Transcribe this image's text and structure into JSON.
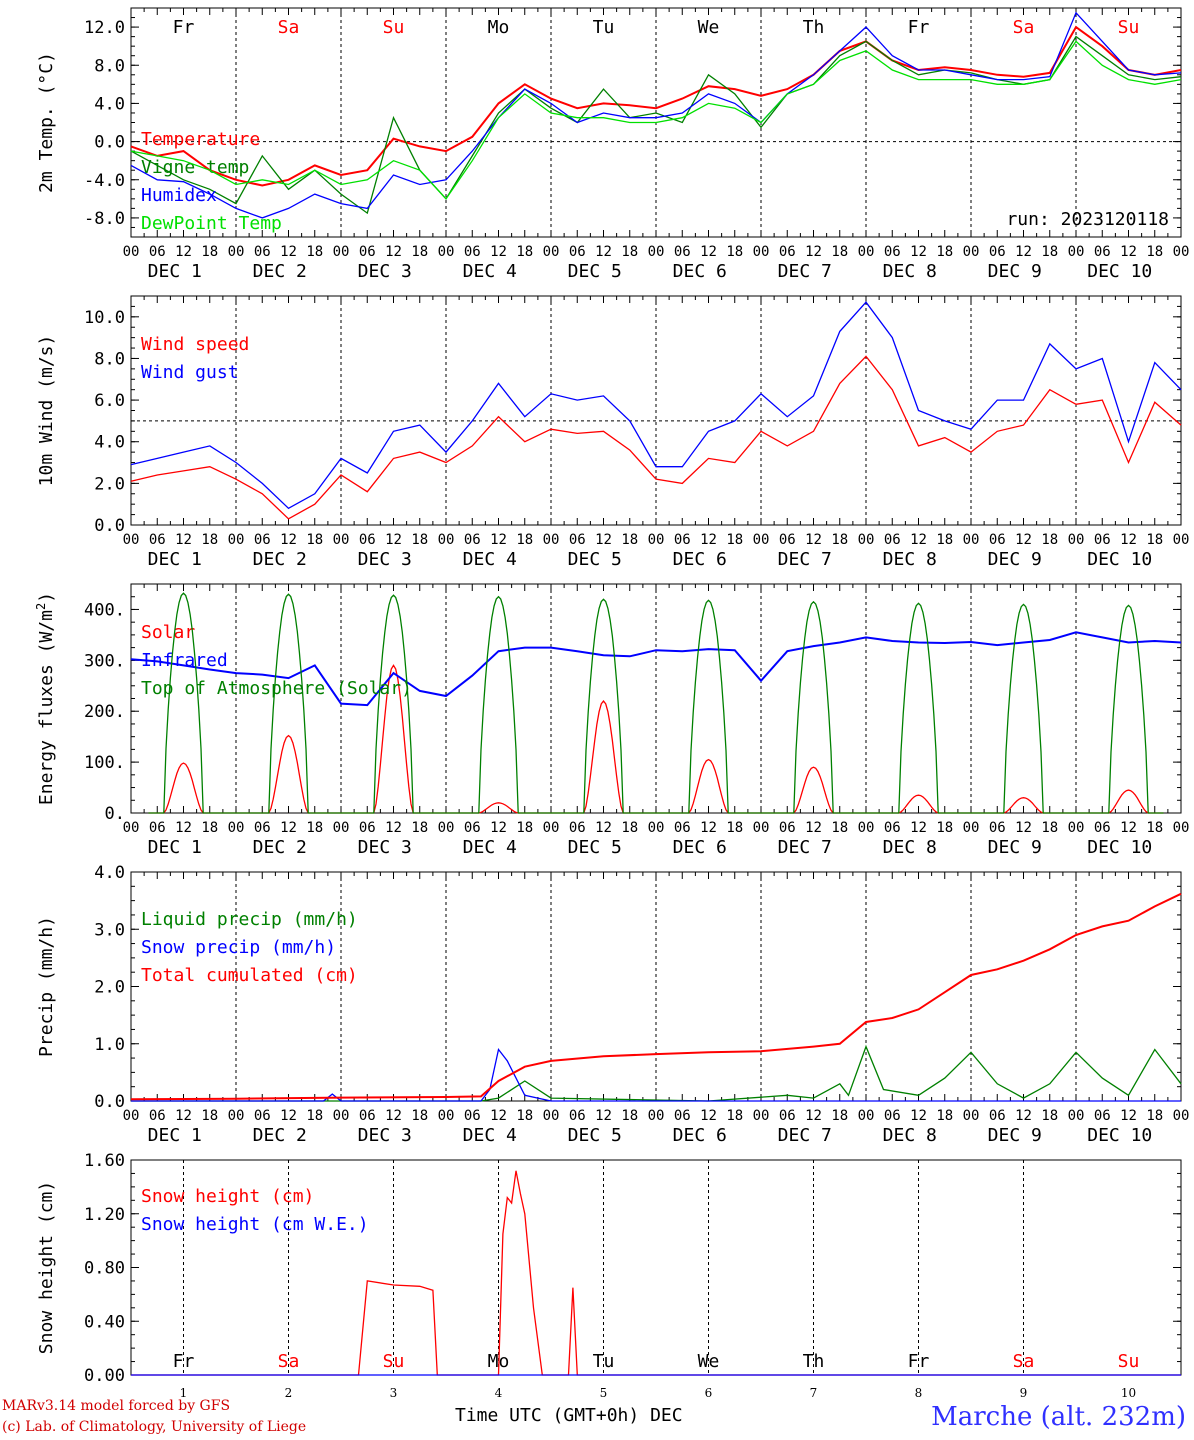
{
  "days": [
    {
      "abbr": "Fr",
      "weekend": false,
      "date": "DEC  1",
      "num": "1"
    },
    {
      "abbr": "Sa",
      "weekend": true,
      "date": "DEC  2",
      "num": "2"
    },
    {
      "abbr": "Su",
      "weekend": true,
      "date": "DEC  3",
      "num": "3"
    },
    {
      "abbr": "Mo",
      "weekend": false,
      "date": "DEC  4",
      "num": "4"
    },
    {
      "abbr": "Tu",
      "weekend": false,
      "date": "DEC  5",
      "num": "5"
    },
    {
      "abbr": "We",
      "weekend": false,
      "date": "DEC  6",
      "num": "6"
    },
    {
      "abbr": "Th",
      "weekend": false,
      "date": "DEC  7",
      "num": "7"
    },
    {
      "abbr": "Fr",
      "weekend": false,
      "date": "DEC  8",
      "num": "8"
    },
    {
      "abbr": "Sa",
      "weekend": true,
      "date": "DEC  9",
      "num": "9"
    },
    {
      "abbr": "Su",
      "weekend": true,
      "date": "DEC 10",
      "num": "10"
    }
  ],
  "hour_labels": [
    "00",
    "06",
    "12",
    "18"
  ],
  "colors": {
    "red": "#ff0000",
    "darkred": "#e00000",
    "blue": "#0000ff",
    "green": "#008000",
    "lightgreen": "#00e000",
    "weekend": "#ff0000"
  },
  "footer": {
    "credit_line1": "MARv3.14 model forced by GFS",
    "credit_line2": "(c) Lab. of Climatology, University of Liege",
    "x_title": "Time UTC (GMT+0h) DEC",
    "station": "Marche (alt. 232m)"
  },
  "chart_data": [
    {
      "type": "line",
      "ylabel": "2m Temp. (°C)",
      "ylim": [
        -10,
        14
      ],
      "yticks": [
        -8,
        -4,
        0,
        4,
        8,
        12
      ],
      "ytick_labels": [
        "-8.0",
        "-4.0",
        "0.0",
        "4.0",
        "8.0",
        "12.0"
      ],
      "ref_line": 0,
      "annotation": "run: 2023120118",
      "x": [
        0,
        6,
        12,
        18,
        24,
        30,
        36,
        42,
        48,
        54,
        60,
        66,
        72,
        78,
        84,
        90,
        96,
        102,
        108,
        114,
        120,
        126,
        132,
        138,
        144,
        150,
        156,
        162,
        168,
        174,
        180,
        186,
        192,
        198,
        204,
        210,
        216,
        222,
        228,
        234,
        240
      ],
      "series": [
        {
          "name": "Temperature",
          "color": "red",
          "values": [
            -0.5,
            -1.5,
            -1.0,
            -3.0,
            -4.0,
            -4.6,
            -4.0,
            -2.5,
            -3.5,
            -3.0,
            0.3,
            -0.5,
            -1.0,
            0.5,
            4.0,
            6.0,
            4.5,
            3.5,
            4.0,
            3.8,
            3.5,
            4.5,
            5.8,
            5.5,
            4.8,
            5.5,
            7.0,
            9.5,
            10.5,
            8.5,
            7.5,
            7.8,
            7.5,
            7.0,
            6.8,
            7.2,
            12.0,
            10.0,
            7.5,
            7.0,
            7.5
          ]
        },
        {
          "name": "Vigne temp",
          "color": "green",
          "values": [
            -1.0,
            -2.5,
            -4.0,
            -5.0,
            -6.5,
            -1.5,
            -5.0,
            -3.0,
            -5.5,
            -7.5,
            2.5,
            -3.0,
            -6.0,
            -1.5,
            3.0,
            5.5,
            3.5,
            2.0,
            5.5,
            2.5,
            3.0,
            2.0,
            7.0,
            5.0,
            1.5,
            5.0,
            6.0,
            9.0,
            10.5,
            8.5,
            7.0,
            7.5,
            7.2,
            6.5,
            6.0,
            6.5,
            11.0,
            9.0,
            7.0,
            6.5,
            6.8
          ]
        },
        {
          "name": "Humidex",
          "color": "blue",
          "values": [
            -2.5,
            -4.0,
            -4.2,
            -5.5,
            -7.0,
            -8.0,
            -7.0,
            -5.5,
            -6.5,
            -7.0,
            -3.5,
            -4.5,
            -4.0,
            -1.0,
            2.5,
            5.5,
            4.0,
            2.0,
            3.0,
            2.5,
            2.5,
            3.0,
            5.0,
            4.0,
            2.0,
            5.0,
            7.0,
            9.5,
            12.0,
            9.0,
            7.5,
            7.5,
            7.0,
            6.5,
            6.5,
            6.8,
            13.5,
            10.5,
            7.5,
            7.0,
            7.2
          ]
        },
        {
          "name": "DewPoint Temp",
          "color": "lightgreen",
          "values": [
            -1.0,
            -1.5,
            -2.0,
            -3.0,
            -4.5,
            -4.0,
            -4.5,
            -3.0,
            -4.5,
            -4.0,
            -2.0,
            -3.0,
            -6.0,
            -2.0,
            2.5,
            5.0,
            3.0,
            2.5,
            2.5,
            2.0,
            2.0,
            2.5,
            4.0,
            3.5,
            2.0,
            5.0,
            6.0,
            8.5,
            9.5,
            7.5,
            6.5,
            6.5,
            6.5,
            6.0,
            6.0,
            6.5,
            10.5,
            8.0,
            6.5,
            6.0,
            6.5
          ]
        }
      ]
    },
    {
      "type": "line",
      "ylabel": "10m Wind (m/s)",
      "ylim": [
        0,
        11
      ],
      "yticks": [
        0,
        2,
        4,
        6,
        8,
        10
      ],
      "ytick_labels": [
        "0.0",
        "2.0",
        "4.0",
        "6.0",
        "8.0",
        "10.0"
      ],
      "ref_line": 5,
      "x": [
        0,
        6,
        12,
        18,
        24,
        30,
        36,
        42,
        48,
        54,
        60,
        66,
        72,
        78,
        84,
        90,
        96,
        102,
        108,
        114,
        120,
        126,
        132,
        138,
        144,
        150,
        156,
        162,
        168,
        174,
        180,
        186,
        192,
        198,
        204,
        210,
        216,
        222,
        228,
        234,
        240
      ],
      "series": [
        {
          "name": "Wind speed",
          "color": "red",
          "values": [
            2.1,
            2.4,
            2.6,
            2.8,
            2.2,
            1.5,
            0.3,
            1.0,
            2.4,
            1.6,
            3.2,
            3.5,
            3.0,
            3.8,
            5.2,
            4.0,
            4.6,
            4.4,
            4.5,
            3.6,
            2.2,
            2.0,
            3.2,
            3.0,
            4.5,
            3.8,
            4.5,
            6.8,
            8.1,
            6.5,
            3.8,
            4.2,
            3.5,
            4.5,
            4.8,
            6.5,
            5.8,
            6.0,
            3.0,
            5.9,
            4.8
          ]
        },
        {
          "name": "Wind gust",
          "color": "blue",
          "values": [
            2.9,
            3.2,
            3.5,
            3.8,
            3.0,
            2.0,
            0.8,
            1.5,
            3.2,
            2.5,
            4.5,
            4.8,
            3.5,
            5.0,
            6.8,
            5.2,
            6.3,
            6.0,
            6.2,
            5.0,
            2.8,
            2.8,
            4.5,
            5.0,
            6.3,
            5.2,
            6.2,
            9.3,
            10.7,
            9.0,
            5.5,
            5.0,
            4.6,
            6.0,
            6.0,
            8.7,
            7.5,
            8.0,
            4.0,
            7.8,
            6.5
          ]
        }
      ]
    },
    {
      "type": "line",
      "ylabel": "Energy fluxes (W/m²)",
      "ylim": [
        0,
        450
      ],
      "yticks": [
        0,
        100,
        200,
        300,
        400
      ],
      "ytick_labels": [
        "0.",
        "100.",
        "200.",
        "300.",
        "400."
      ],
      "series": [
        {
          "name": "Solar",
          "color": "red",
          "peaks": [
            {
              "day": 0,
              "peak": 98
            },
            {
              "day": 1,
              "peak": 152
            },
            {
              "day": 2,
              "peak": 290
            },
            {
              "day": 3,
              "peak": 20
            },
            {
              "day": 4,
              "peak": 220
            },
            {
              "day": 5,
              "peak": 105
            },
            {
              "day": 6,
              "peak": 90
            },
            {
              "day": 7,
              "peak": 35
            },
            {
              "day": 8,
              "peak": 30
            },
            {
              "day": 9,
              "peak": 45
            }
          ]
        },
        {
          "name": "Infrared",
          "color": "blue",
          "x": [
            0,
            6,
            12,
            18,
            24,
            30,
            36,
            42,
            48,
            54,
            60,
            66,
            72,
            78,
            84,
            90,
            96,
            102,
            108,
            114,
            120,
            126,
            132,
            138,
            144,
            150,
            156,
            162,
            168,
            174,
            180,
            186,
            192,
            198,
            204,
            210,
            216,
            222,
            228,
            234,
            240
          ],
          "values": [
            302,
            298,
            290,
            282,
            275,
            272,
            265,
            290,
            215,
            212,
            275,
            240,
            230,
            270,
            318,
            325,
            325,
            318,
            310,
            308,
            320,
            318,
            322,
            320,
            260,
            318,
            328,
            335,
            345,
            338,
            335,
            334,
            336,
            330,
            335,
            340,
            355,
            345,
            335,
            338,
            335
          ]
        },
        {
          "name": "Top of Atmosphere (Solar)",
          "color": "green",
          "peaks": [
            {
              "day": 0,
              "peak": 432
            },
            {
              "day": 1,
              "peak": 430
            },
            {
              "day": 2,
              "peak": 428
            },
            {
              "day": 3,
              "peak": 425
            },
            {
              "day": 4,
              "peak": 420
            },
            {
              "day": 5,
              "peak": 418
            },
            {
              "day": 6,
              "peak": 415
            },
            {
              "day": 7,
              "peak": 412
            },
            {
              "day": 8,
              "peak": 410
            },
            {
              "day": 9,
              "peak": 408
            }
          ]
        }
      ]
    },
    {
      "type": "line",
      "ylabel": "Precip (mm/h)",
      "ylim": [
        0,
        4
      ],
      "yticks": [
        0,
        1,
        2,
        3,
        4
      ],
      "ytick_labels": [
        "0.0",
        "1.0",
        "2.0",
        "3.0",
        "4.0"
      ],
      "series": [
        {
          "name": "Liquid precip (mm/h)",
          "color": "green",
          "x": [
            0,
            45,
            48,
            80,
            84,
            90,
            96,
            132,
            150,
            156,
            162,
            164,
            168,
            172,
            180,
            186,
            192,
            198,
            204,
            210,
            216,
            222,
            228,
            234,
            240
          ],
          "values": [
            0,
            0,
            0,
            0,
            0.05,
            0.35,
            0.05,
            0,
            0.1,
            0.05,
            0.3,
            0.1,
            0.95,
            0.2,
            0.1,
            0.4,
            0.85,
            0.3,
            0.05,
            0.3,
            0.85,
            0.4,
            0.1,
            0.9,
            0.3
          ]
        },
        {
          "name": "Snow precip (mm/h)",
          "color": "blue",
          "x": [
            0,
            44,
            46,
            48,
            80,
            82,
            84,
            86,
            90,
            96,
            240
          ],
          "values": [
            0,
            0,
            0.12,
            0,
            0,
            0.2,
            0.9,
            0.7,
            0.1,
            0,
            0
          ]
        },
        {
          "name": "Total cumulated (cm)",
          "color": "red",
          "x": [
            0,
            24,
            48,
            72,
            80,
            84,
            90,
            96,
            108,
            120,
            132,
            144,
            156,
            162,
            168,
            174,
            180,
            186,
            192,
            198,
            204,
            210,
            216,
            222,
            228,
            234,
            240
          ],
          "values": [
            0.03,
            0.04,
            0.06,
            0.07,
            0.08,
            0.35,
            0.6,
            0.7,
            0.78,
            0.82,
            0.85,
            0.87,
            0.95,
            1.0,
            1.38,
            1.45,
            1.6,
            1.9,
            2.2,
            2.3,
            2.45,
            2.65,
            2.9,
            3.05,
            3.15,
            3.4,
            3.62
          ]
        }
      ]
    },
    {
      "type": "line",
      "ylabel": "Snow height (cm)",
      "ylim": [
        0,
        1.6
      ],
      "yticks": [
        0,
        0.4,
        0.8,
        1.2,
        1.6
      ],
      "ytick_labels": [
        "0.00",
        "0.40",
        "0.80",
        "1.20",
        "1.60"
      ],
      "series": [
        {
          "name": "Snow height (cm)",
          "color": "red",
          "x": [
            0,
            52,
            54,
            60,
            66,
            69,
            70,
            72,
            84,
            85,
            86,
            87,
            88,
            89,
            90,
            92,
            94,
            95,
            100,
            101,
            102,
            103,
            240
          ],
          "values": [
            0,
            0,
            0.7,
            0.67,
            0.66,
            0.63,
            0,
            0,
            0,
            1.05,
            1.32,
            1.28,
            1.52,
            1.35,
            1.2,
            0.5,
            0,
            0,
            0,
            0.65,
            0,
            0,
            0
          ]
        },
        {
          "name": "Snow height (cm W.E.)",
          "color": "blue",
          "x": [
            0,
            240
          ],
          "values": [
            0,
            0
          ]
        }
      ]
    }
  ]
}
